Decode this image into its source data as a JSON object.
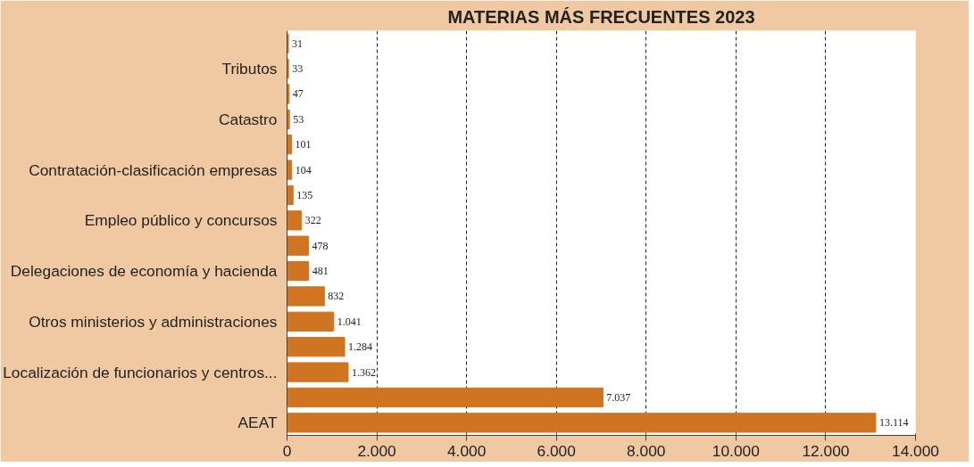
{
  "chart_data": {
    "type": "bar",
    "orientation": "horizontal",
    "title": "MATERIAS MÁS FRECUENTES 2023",
    "categories": [
      null,
      "Tributos",
      null,
      "Catastro",
      null,
      "Contratación-clasificación empresas",
      null,
      "Empleo público y concursos",
      null,
      "Delegaciones de economía y hacienda",
      null,
      "Otros ministerios y administraciones",
      null,
      "Localización de funcionarios y centros...",
      null,
      "AEAT"
    ],
    "values": [
      31,
      33,
      47,
      53,
      101,
      104,
      135,
      322,
      478,
      481,
      832,
      1041,
      1284,
      1362,
      7037,
      13114
    ],
    "value_labels": [
      "31",
      "33",
      "47",
      "53",
      "101",
      "104",
      "135",
      "322",
      "478",
      "481",
      "832",
      "1.041",
      "1.284",
      "1.362",
      "7.037",
      "13.114"
    ],
    "color": "#cf7420",
    "xlim": [
      0,
      14000
    ],
    "xticks": [
      0,
      {
        "value": 2000,
        "label": "2.000"
      },
      {
        "value": 4000,
        "label": "4.000"
      },
      {
        "value": 6000,
        "label": "6.000"
      },
      {
        "value": 8000,
        "label": "8.000"
      },
      {
        "value": 10000,
        "label": "10.000"
      },
      {
        "value": 12000,
        "label": "12.000"
      },
      {
        "value": 14000,
        "label": "14.000"
      }
    ],
    "grid": "x"
  }
}
